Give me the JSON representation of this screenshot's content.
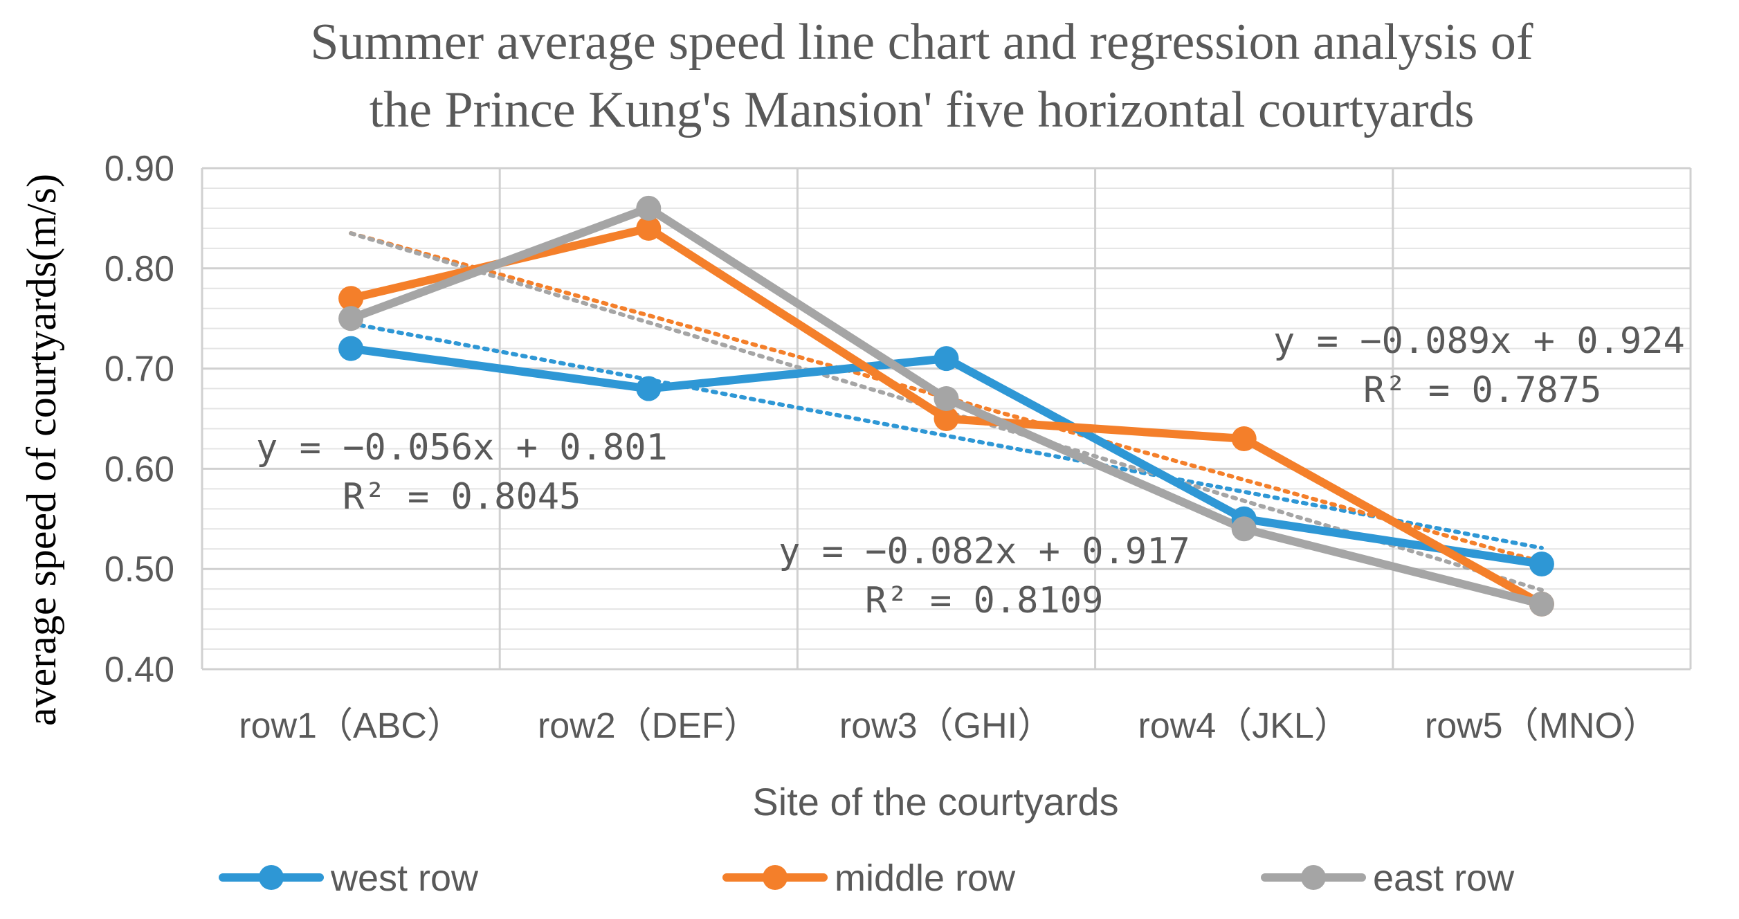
{
  "chart_data": {
    "type": "line",
    "title": [
      "Summer average speed line chart and regression analysis of",
      "the Prince Kung's Mansion' five horizontal courtyards"
    ],
    "xlabel": "Site of the courtyards",
    "ylabel": "average speed of courtyards(m/s)",
    "categories": [
      "row1（ABC）",
      "row2（DEF）",
      "row3（GHI）",
      "row4（JKL）",
      "row5（MNO）"
    ],
    "ylim": [
      0.4,
      0.9
    ],
    "ymajor": 0.1,
    "yminor": 0.02,
    "yticks": [
      "0.40",
      "0.50",
      "0.60",
      "0.70",
      "0.80",
      "0.90"
    ],
    "series": [
      {
        "name": "west row",
        "color": "#2E97D5",
        "values": [
          0.72,
          0.68,
          0.71,
          0.55,
          0.505
        ],
        "trend": {
          "slope": -0.056,
          "intercept": 0.801
        }
      },
      {
        "name": "middle row",
        "color": "#F47F2A",
        "values": [
          0.77,
          0.84,
          0.65,
          0.63,
          0.465
        ],
        "trend": {
          "slope": -0.082,
          "intercept": 0.917
        }
      },
      {
        "name": "east row",
        "color": "#A5A5A5",
        "values": [
          0.75,
          0.86,
          0.67,
          0.54,
          0.465
        ],
        "trend": {
          "slope": -0.089,
          "intercept": 0.924
        }
      }
    ],
    "annotations": [
      {
        "series": "west row",
        "equation": "y = −0.056x + 0.801",
        "r2": "R² = 0.8045"
      },
      {
        "series": "middle row",
        "equation": "y = −0.082x + 0.917",
        "r2": "R² = 0.8109"
      },
      {
        "series": "east row",
        "equation": "y = −0.089x + 0.924",
        "r2": "R² = 0.7875"
      }
    ],
    "legend_position": "bottom"
  }
}
